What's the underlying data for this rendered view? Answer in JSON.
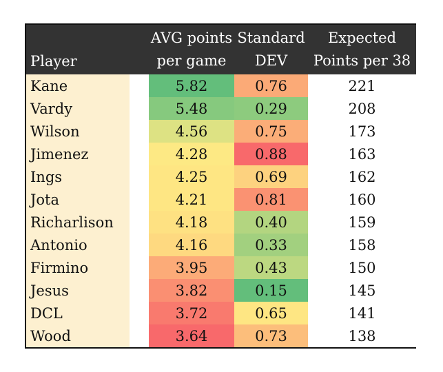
{
  "headers": {
    "player": "Player",
    "avg_line1": "AVG points",
    "avg_line2": "per game",
    "std_line1": "Standard",
    "std_line2": "DEV",
    "exp_line1": "Expected",
    "exp_line2": "Points per 38"
  },
  "rows": [
    {
      "player": "Kane",
      "avg": "5.82",
      "std": "0.76",
      "exp": "221",
      "avg_color": "#63be7b",
      "std_color": "#fbaa77"
    },
    {
      "player": "Vardy",
      "avg": "5.48",
      "std": "0.29",
      "exp": "208",
      "avg_color": "#86c97e",
      "std_color": "#8dcb7e"
    },
    {
      "player": "Wilson",
      "avg": "4.56",
      "std": "0.75",
      "exp": "173",
      "avg_color": "#dde283",
      "std_color": "#fbad78"
    },
    {
      "player": "Jimenez",
      "avg": "4.28",
      "std": "0.88",
      "exp": "163",
      "avg_color": "#fde984",
      "std_color": "#f8696b"
    },
    {
      "player": "Ings",
      "avg": "4.25",
      "std": "0.69",
      "exp": "162",
      "avg_color": "#fee683",
      "std_color": "#fdd27f"
    },
    {
      "player": "Jota",
      "avg": "4.21",
      "std": "0.81",
      "exp": "160",
      "avg_color": "#fee683",
      "std_color": "#fa9272"
    },
    {
      "player": "Richarlison",
      "avg": "4.18",
      "std": "0.40",
      "exp": "159",
      "avg_color": "#fee182",
      "std_color": "#b3d580"
    },
    {
      "player": "Antonio",
      "avg": "4.16",
      "std": "0.33",
      "exp": "158",
      "avg_color": "#fed980",
      "std_color": "#a2d07f"
    },
    {
      "player": "Firmino",
      "avg": "3.95",
      "std": "0.43",
      "exp": "150",
      "avg_color": "#fcab78",
      "std_color": "#bcd881"
    },
    {
      "player": "Jesus",
      "avg": "3.82",
      "std": "0.15",
      "exp": "145",
      "avg_color": "#fa8f72",
      "std_color": "#63be7b"
    },
    {
      "player": "DCL",
      "avg": "3.72",
      "std": "0.65",
      "exp": "141",
      "avg_color": "#f97a6e",
      "std_color": "#fee683"
    },
    {
      "player": "Wood",
      "avg": "3.64",
      "std": "0.73",
      "exp": "138",
      "avg_color": "#f8696b",
      "std_color": "#fcbe7b"
    }
  ]
}
